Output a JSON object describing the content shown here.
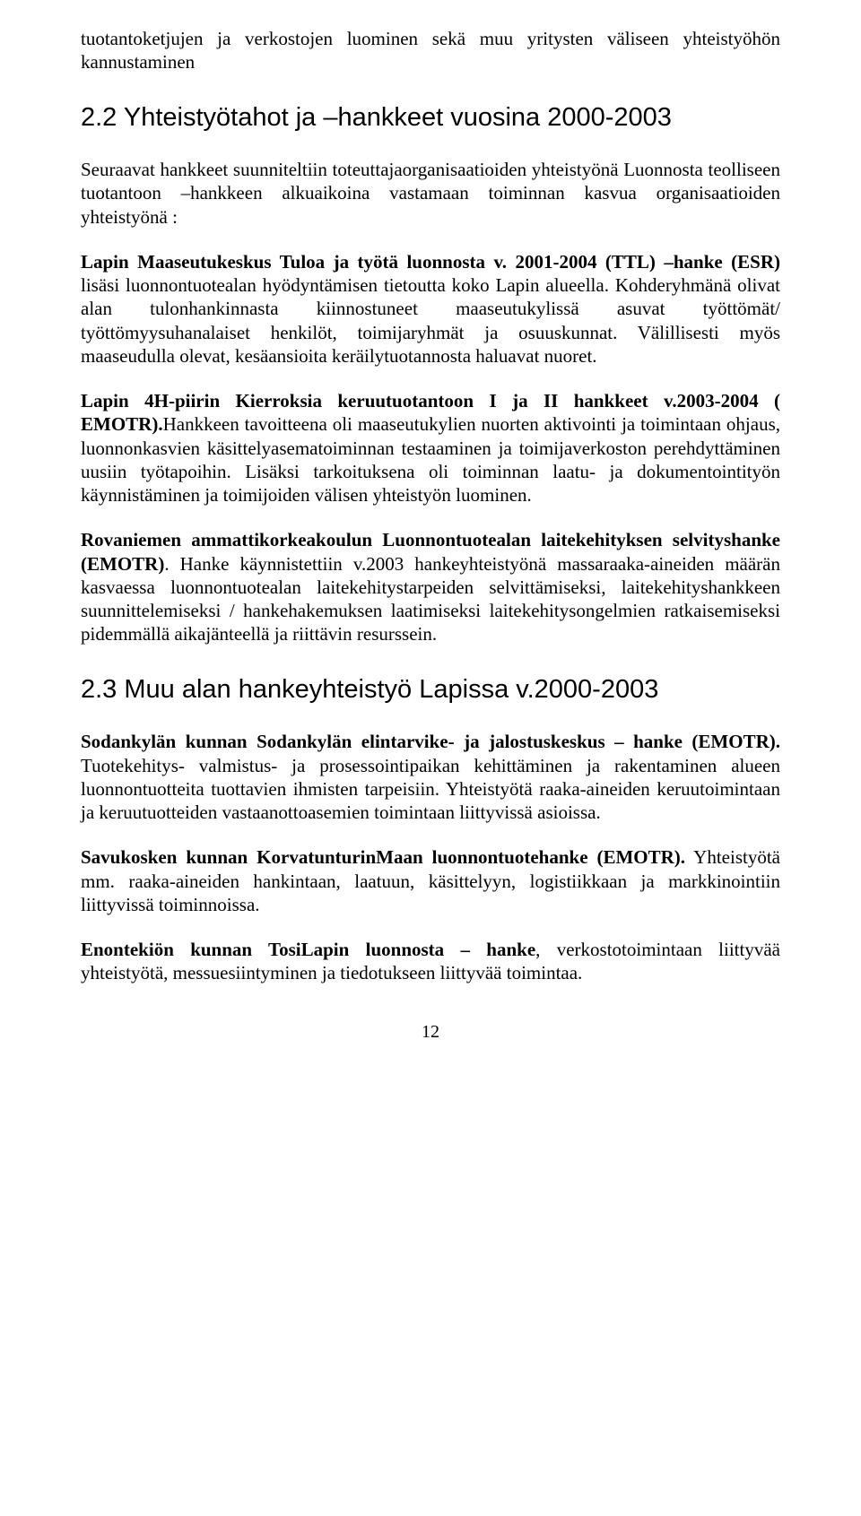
{
  "p_lead": "tuotantoketjujen ja verkostojen luominen sekä muu yritysten väliseen yhteistyöhön kannustaminen",
  "h_22": "2.2 Yhteistyötahot ja –hankkeet vuosina 2000-2003",
  "p_22_intro": "Seuraavat hankkeet suunniteltiin toteuttajaorganisaatioiden yhteistyönä Luonnosta teolliseen tuotantoon –hankkeen alkuaikoina vastamaan toiminnan kasvua organisaatioiden yhteistyönä :",
  "p_lapin_bold": "Lapin Maaseutukeskus Tuloa ja työtä luonnosta v. 2001-2004 (TTL) –hanke (ESR)",
  "p_lapin_rest": " lisäsi luonnontuotealan hyödyntämisen tietoutta koko Lapin alueella. Kohderyhmänä olivat alan tulonhankinnasta kiinnostuneet maaseutukylissä asuvat työttömät/ työttömyysuhanalaiset henkilöt, toimijaryhmät ja osuuskunnat. Välillisesti myös maaseudulla olevat, kesäansioita keräilytuotannosta haluavat nuoret.",
  "p_4h_bold": "Lapin 4H-piirin Kierroksia keruutuotantoon I ja II hankkeet v.2003-2004 ( EMOTR).",
  "p_4h_rest": "Hankkeen tavoitteena oli maaseutukylien nuorten aktivointi ja toimintaan ohjaus, luonnonkasvien käsittelyasematoiminnan testaaminen ja toimijaverkoston perehdyttäminen uusiin työtapoihin. Lisäksi tarkoituksena oli toiminnan laatu- ja dokumentointityön käynnistäminen ja toimijoiden välisen yhteistyön luominen.",
  "p_rov_bold": "Rovaniemen ammattikorkeakoulun Luonnontuotealan laitekehityksen selvityshanke (EMOTR)",
  "p_rov_rest": ". Hanke käynnistettiin v.2003 hankeyhteistyönä massaraaka-aineiden määrän kasvaessa luonnontuotealan laitekehitystarpeiden selvittämiseksi, laitekehityshankkeen suunnittelemiseksi / hankehakemuksen laatimiseksi laitekehitysongelmien ratkaisemiseksi pidemmällä aikajänteellä ja riittävin resurssein.",
  "h_23": "2.3 Muu alan hankeyhteistyö Lapissa v.2000-2003",
  "p_sod_bold": "Sodankylän kunnan Sodankylän elintarvike- ja jalostuskeskus – hanke (EMOTR).",
  "p_sod_rest": " Tuotekehitys- valmistus- ja prosessointipaikan kehittäminen ja rakentaminen alueen luonnontuotteita tuottavien ihmisten tarpeisiin. Yhteistyötä raaka-aineiden keruutoimintaan ja keruutuotteiden vastaanottoasemien toimintaan liittyvissä asioissa.",
  "p_savu_bold1": "Savukosken",
  "p_savu_mid1": " ",
  "p_savu_bold2": "kunnan",
  "p_savu_mid2": " ",
  "p_savu_bold3": "KorvatunturinMaan",
  "p_savu_mid3": " ",
  "p_savu_bold4": "luonnontuotehanke (EMOTR).",
  "p_savu_rest": " Yhteistyötä mm. raaka-aineiden hankintaan, laatuun, käsittelyyn, logistiikkaan ja markkinointiin liittyvissä toiminnoissa.",
  "p_enon_bold": "Enontekiön kunnan TosiLapin luonnosta – hanke",
  "p_enon_rest": ", verkostotoimintaan liittyvää yhteistyötä, messuesiintyminen ja tiedotukseen liittyvää toimintaa.",
  "page_number": "12"
}
